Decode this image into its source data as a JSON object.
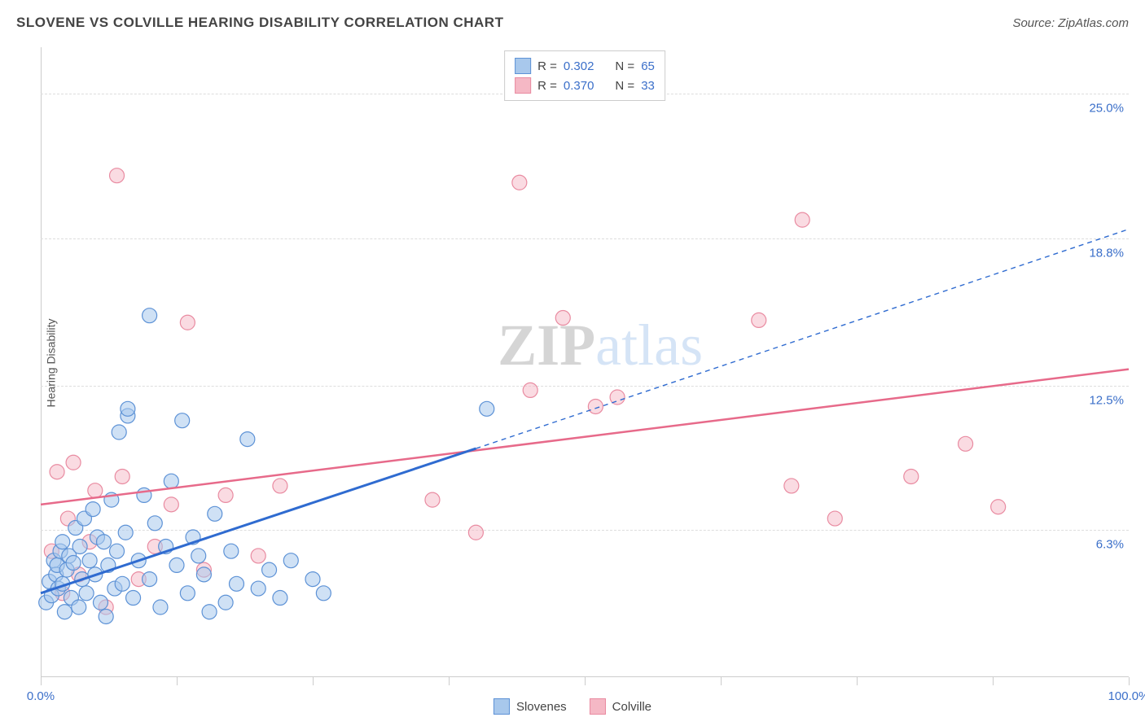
{
  "title": "SLOVENE VS COLVILLE HEARING DISABILITY CORRELATION CHART",
  "source": "Source: ZipAtlas.com",
  "ylabel": "Hearing Disability",
  "watermark": {
    "zip": "ZIP",
    "atlas": "atlas"
  },
  "chart": {
    "type": "scatter",
    "xlim": [
      0,
      100
    ],
    "ylim": [
      0,
      27
    ],
    "y_gridlines": [
      6.3,
      12.5,
      18.8,
      25.0
    ],
    "y_tick_labels": [
      "6.3%",
      "12.5%",
      "18.8%",
      "25.0%"
    ],
    "x_ticks": [
      0,
      12.5,
      25,
      37.5,
      50,
      62.5,
      75,
      87.5,
      100
    ],
    "x_tick_labels": {
      "0": "0.0%",
      "100": "100.0%"
    },
    "background_color": "#ffffff",
    "grid_color": "#dddddd",
    "axis_color": "#cccccc",
    "tick_label_color": "#3b6fc9",
    "marker_radius": 9,
    "marker_stroke_width": 1.2,
    "series": [
      {
        "name": "Slovenes",
        "fill": "#a8c8ec",
        "stroke": "#5d92d6",
        "fill_opacity": 0.55,
        "R": "0.302",
        "N": "65",
        "trend": {
          "x1": 0,
          "y1": 3.6,
          "x2": 40,
          "y2": 9.8,
          "x2d": 100,
          "y2d": 19.2,
          "color": "#2f6bd0",
          "solid_width": 3,
          "dash_width": 1.4,
          "dash": "6,5"
        },
        "points": [
          [
            0.5,
            3.2
          ],
          [
            0.8,
            4.1
          ],
          [
            1.0,
            3.5
          ],
          [
            1.2,
            5.0
          ],
          [
            1.4,
            4.4
          ],
          [
            1.5,
            4.8
          ],
          [
            1.6,
            3.8
          ],
          [
            1.8,
            5.4
          ],
          [
            2.0,
            4.0
          ],
          [
            2.0,
            5.8
          ],
          [
            2.2,
            2.8
          ],
          [
            2.4,
            4.6
          ],
          [
            2.6,
            5.2
          ],
          [
            2.8,
            3.4
          ],
          [
            3.0,
            4.9
          ],
          [
            3.2,
            6.4
          ],
          [
            3.5,
            3.0
          ],
          [
            3.6,
            5.6
          ],
          [
            3.8,
            4.2
          ],
          [
            4.0,
            6.8
          ],
          [
            4.2,
            3.6
          ],
          [
            4.5,
            5.0
          ],
          [
            4.8,
            7.2
          ],
          [
            5.0,
            4.4
          ],
          [
            5.2,
            6.0
          ],
          [
            5.5,
            3.2
          ],
          [
            5.8,
            5.8
          ],
          [
            6.0,
            2.6
          ],
          [
            6.2,
            4.8
          ],
          [
            6.5,
            7.6
          ],
          [
            6.8,
            3.8
          ],
          [
            7.0,
            5.4
          ],
          [
            7.2,
            10.5
          ],
          [
            7.5,
            4.0
          ],
          [
            7.8,
            6.2
          ],
          [
            8.0,
            11.2
          ],
          [
            8.0,
            11.5
          ],
          [
            8.5,
            3.4
          ],
          [
            9.0,
            5.0
          ],
          [
            9.5,
            7.8
          ],
          [
            10.0,
            4.2
          ],
          [
            10.0,
            15.5
          ],
          [
            10.5,
            6.6
          ],
          [
            11.0,
            3.0
          ],
          [
            11.5,
            5.6
          ],
          [
            12.0,
            8.4
          ],
          [
            12.5,
            4.8
          ],
          [
            13.0,
            11.0
          ],
          [
            13.5,
            3.6
          ],
          [
            14.0,
            6.0
          ],
          [
            14.5,
            5.2
          ],
          [
            15.0,
            4.4
          ],
          [
            15.5,
            2.8
          ],
          [
            16.0,
            7.0
          ],
          [
            17.0,
            3.2
          ],
          [
            17.5,
            5.4
          ],
          [
            18.0,
            4.0
          ],
          [
            19.0,
            10.2
          ],
          [
            20.0,
            3.8
          ],
          [
            21.0,
            4.6
          ],
          [
            22.0,
            3.4
          ],
          [
            23.0,
            5.0
          ],
          [
            25.0,
            4.2
          ],
          [
            26.0,
            3.6
          ],
          [
            41.0,
            11.5
          ]
        ]
      },
      {
        "name": "Colville",
        "fill": "#f5b8c5",
        "stroke": "#e98ba1",
        "fill_opacity": 0.5,
        "R": "0.370",
        "N": "33",
        "trend": {
          "x1": 0,
          "y1": 7.4,
          "x2": 100,
          "y2": 13.2,
          "color": "#e76a8a",
          "solid_width": 2.5
        },
        "points": [
          [
            1.0,
            5.4
          ],
          [
            1.5,
            8.8
          ],
          [
            2.0,
            3.6
          ],
          [
            2.5,
            6.8
          ],
          [
            3.0,
            9.2
          ],
          [
            3.5,
            4.4
          ],
          [
            4.5,
            5.8
          ],
          [
            5.0,
            8.0
          ],
          [
            6.0,
            3.0
          ],
          [
            7.0,
            21.5
          ],
          [
            7.5,
            8.6
          ],
          [
            9.0,
            4.2
          ],
          [
            10.5,
            5.6
          ],
          [
            12.0,
            7.4
          ],
          [
            13.5,
            15.2
          ],
          [
            15.0,
            4.6
          ],
          [
            17.0,
            7.8
          ],
          [
            20.0,
            5.2
          ],
          [
            22.0,
            8.2
          ],
          [
            36.0,
            7.6
          ],
          [
            40.0,
            6.2
          ],
          [
            44.0,
            21.2
          ],
          [
            45.0,
            12.3
          ],
          [
            48.0,
            15.4
          ],
          [
            51.0,
            11.6
          ],
          [
            53.0,
            12.0
          ],
          [
            66.0,
            15.3
          ],
          [
            69.0,
            8.2
          ],
          [
            70.0,
            19.6
          ],
          [
            73.0,
            6.8
          ],
          [
            80.0,
            8.6
          ],
          [
            85.0,
            10.0
          ],
          [
            88.0,
            7.3
          ]
        ]
      }
    ]
  },
  "legend_top": {
    "r_label": "R =",
    "n_label": "N ="
  },
  "legend_bottom": [
    {
      "label": "Slovenes",
      "fill": "#a8c8ec",
      "stroke": "#5d92d6"
    },
    {
      "label": "Colville",
      "fill": "#f5b8c5",
      "stroke": "#e98ba1"
    }
  ]
}
